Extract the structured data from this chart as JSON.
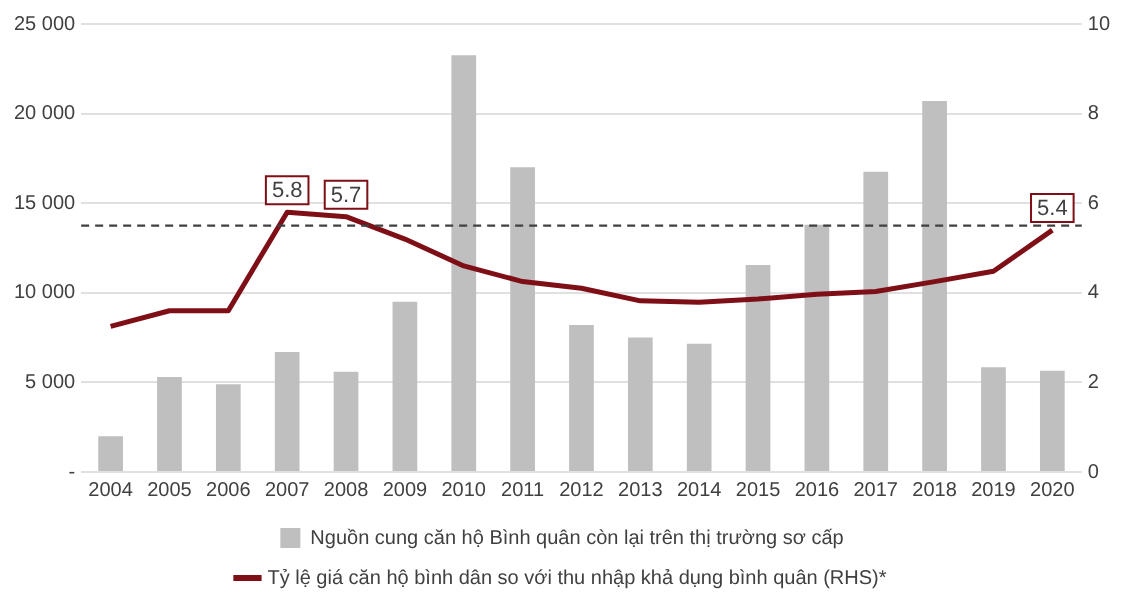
{
  "chart_data": {
    "type": "bar",
    "categories": [
      "2004",
      "2005",
      "2006",
      "2007",
      "2008",
      "2009",
      "2010",
      "2011",
      "2012",
      "2013",
      "2014",
      "2015",
      "2016",
      "2017",
      "2018",
      "2019",
      "2020"
    ],
    "series": [
      {
        "name": "Nguồn cung căn hộ Bình quân còn lại trên thị trường sơ cấp",
        "color": "#bfbfbf",
        "values": [
          2000,
          5300,
          4900,
          6700,
          5600,
          9500,
          23250,
          17000,
          8200,
          7500,
          7150,
          11550,
          13800,
          16750,
          20700,
          5850,
          5650
        ]
      },
      {
        "name": "Tỷ lệ giá căn hộ bình dân so với thu nhập khả dụng bình quân (RHS)*",
        "type": "line",
        "axis": "y2",
        "color": "#7f0f16",
        "values": [
          3.25,
          3.6,
          3.6,
          5.8,
          5.7,
          5.2,
          4.6,
          4.25,
          4.1,
          3.82,
          3.79,
          3.86,
          3.97,
          4.03,
          4.25,
          4.48,
          5.4
        ],
        "value_labels": [
          null,
          null,
          null,
          "5.8",
          "5.7",
          null,
          null,
          null,
          null,
          null,
          null,
          null,
          null,
          null,
          null,
          null,
          "5.4"
        ]
      }
    ],
    "ylim": [
      0,
      25000
    ],
    "yticks": [
      {
        "value": 0,
        "label": "-"
      },
      {
        "value": 5000,
        "label": "5 000"
      },
      {
        "value": 10000,
        "label": "10 000"
      },
      {
        "value": 15000,
        "label": "15 000"
      },
      {
        "value": 20000,
        "label": "20 000"
      },
      {
        "value": 25000,
        "label": "25 000"
      }
    ],
    "y2lim": [
      0,
      10
    ],
    "y2ticks": [
      0,
      2,
      4,
      6,
      8,
      10
    ],
    "ref_lines": [
      {
        "axis": "y2",
        "value": 5.5,
        "color": "#404040",
        "line_style": "dashed"
      }
    ],
    "grid": "y",
    "legend": "bottom",
    "marker": "none",
    "line_style": "solid"
  }
}
